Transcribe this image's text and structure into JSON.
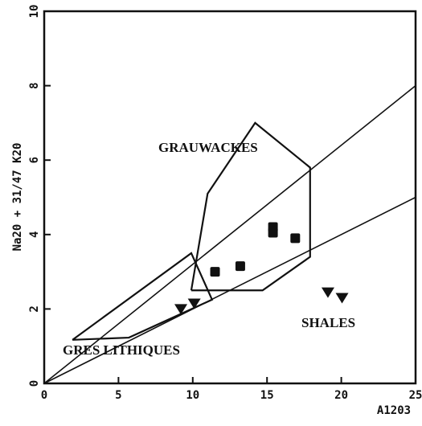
{
  "chart_data": {
    "type": "scatter",
    "x_label": "A1203",
    "y_label": "Na20 + 31/47 K20",
    "xlim": [
      0,
      25
    ],
    "ylim": [
      0,
      10
    ],
    "xticks": [
      0,
      5,
      10,
      15,
      20,
      25
    ],
    "yticks": [
      0,
      2,
      4,
      6,
      8,
      10
    ],
    "series": [
      {
        "marker": "square",
        "color": "#111111",
        "x": [
          11.5,
          13.2,
          15.4,
          15.4,
          16.9
        ],
        "values": [
          3.0,
          3.15,
          4.2,
          4.05,
          3.9
        ]
      },
      {
        "marker": "triangle-down",
        "color": "#111111",
        "x": [
          9.2,
          10.1,
          19.1,
          20.05
        ],
        "values": [
          2.0,
          2.15,
          2.45,
          2.3
        ]
      }
    ],
    "lines": [
      {
        "x": [
          0,
          25
        ],
        "y": [
          0,
          8
        ]
      },
      {
        "x": [
          0,
          25
        ],
        "y": [
          0,
          5
        ]
      }
    ],
    "polygons": [
      {
        "x": [
          9.9,
          11.0,
          14.2,
          17.9,
          17.9,
          14.7,
          9.9
        ],
        "y": [
          2.5,
          5.1,
          7.0,
          5.8,
          3.4,
          2.5,
          2.5
        ]
      },
      {
        "x": [
          1.9,
          9.9,
          11.3,
          5.7,
          1.9
        ],
        "y": [
          1.17,
          3.5,
          2.25,
          1.23,
          1.17
        ]
      }
    ],
    "annotations": [
      "GRAUWACKES",
      "SHALES",
      "GRES LITHIQUES"
    ]
  }
}
